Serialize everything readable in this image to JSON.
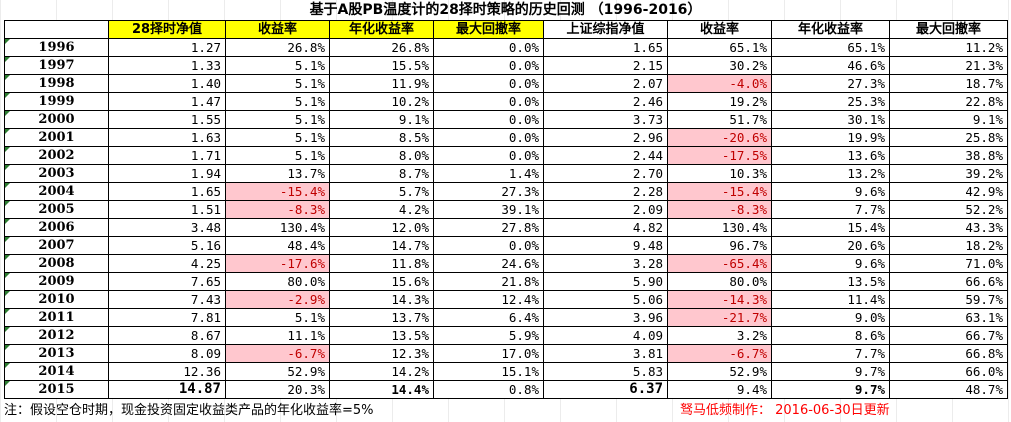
{
  "title": "基于A股PB温度计的28择时策略的历史回测 （1996-2016）",
  "headers": [
    "",
    "28择时净值",
    "收益率",
    "年化收益率",
    "最大回撤率",
    "上证综指净值",
    "收益率",
    "年化收益率",
    "最大回撤率"
  ],
  "highlight_color": "#ffc7ce",
  "rows": [
    [
      "1996",
      "1.27",
      "26.8%",
      "26.8%",
      "0.0%",
      "1.65",
      "65.1%",
      "65.1%",
      "11.2%"
    ],
    [
      "1997",
      "1.33",
      "5.1%",
      "15.5%",
      "0.0%",
      "2.15",
      "30.2%",
      "46.6%",
      "21.3%"
    ],
    [
      "1998",
      "1.40",
      "5.1%",
      "11.9%",
      "0.0%",
      "2.07",
      "-4.0%",
      "27.3%",
      "18.7%"
    ],
    [
      "1999",
      "1.47",
      "5.1%",
      "10.2%",
      "0.0%",
      "2.46",
      "19.2%",
      "25.3%",
      "22.8%"
    ],
    [
      "2000",
      "1.55",
      "5.1%",
      "9.1%",
      "0.0%",
      "3.73",
      "51.7%",
      "30.1%",
      "9.1%"
    ],
    [
      "2001",
      "1.63",
      "5.1%",
      "8.5%",
      "0.0%",
      "2.96",
      "-20.6%",
      "19.9%",
      "25.8%"
    ],
    [
      "2002",
      "1.71",
      "5.1%",
      "8.0%",
      "0.0%",
      "2.44",
      "-17.5%",
      "13.6%",
      "38.8%"
    ],
    [
      "2003",
      "1.94",
      "13.7%",
      "8.7%",
      "1.4%",
      "2.70",
      "10.3%",
      "13.2%",
      "39.2%"
    ],
    [
      "2004",
      "1.65",
      "-15.4%",
      "5.7%",
      "27.3%",
      "2.28",
      "-15.4%",
      "9.6%",
      "42.9%"
    ],
    [
      "2005",
      "1.51",
      "-8.3%",
      "4.2%",
      "39.1%",
      "2.09",
      "-8.3%",
      "7.7%",
      "52.2%"
    ],
    [
      "2006",
      "3.48",
      "130.4%",
      "12.0%",
      "27.8%",
      "4.82",
      "130.4%",
      "15.4%",
      "43.3%"
    ],
    [
      "2007",
      "5.16",
      "48.4%",
      "14.7%",
      "0.0%",
      "9.48",
      "96.7%",
      "20.6%",
      "18.2%"
    ],
    [
      "2008",
      "4.25",
      "-17.6%",
      "11.8%",
      "24.6%",
      "3.28",
      "-65.4%",
      "9.6%",
      "71.0%"
    ],
    [
      "2009",
      "7.65",
      "80.0%",
      "15.6%",
      "21.8%",
      "5.90",
      "80.0%",
      "13.5%",
      "66.6%"
    ],
    [
      "2010",
      "7.43",
      "-2.9%",
      "14.3%",
      "12.4%",
      "5.06",
      "-14.3%",
      "11.4%",
      "59.7%"
    ],
    [
      "2011",
      "7.81",
      "5.1%",
      "13.7%",
      "6.4%",
      "3.96",
      "-21.7%",
      "9.0%",
      "63.1%"
    ],
    [
      "2012",
      "8.67",
      "11.1%",
      "13.5%",
      "5.9%",
      "4.09",
      "3.2%",
      "8.6%",
      "66.7%"
    ],
    [
      "2013",
      "8.09",
      "-6.7%",
      "12.3%",
      "17.0%",
      "3.81",
      "-6.7%",
      "7.7%",
      "66.8%"
    ],
    [
      "2014",
      "12.36",
      "52.9%",
      "14.2%",
      "15.1%",
      "5.83",
      "52.9%",
      "9.7%",
      "66.0%"
    ],
    [
      "2015",
      "14.87",
      "20.3%",
      "14.4%",
      "0.8%",
      "6.37",
      "9.4%",
      "9.7%",
      "48.7%"
    ]
  ],
  "note": "注：假设空仓时期，现金投资固定收益类产品的年化收益率=5%",
  "credit": "驽马低频制作：  2016-06-30日更新"
}
